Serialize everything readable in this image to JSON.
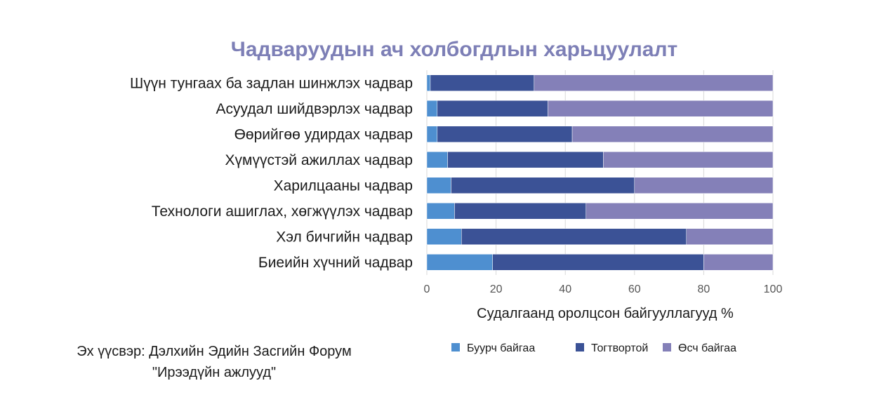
{
  "chart_data": {
    "type": "bar",
    "orientation": "horizontal",
    "stacked": true,
    "title": "Чадваруудын ач холбогдлын харьцуулалт",
    "xlabel": "Судалгаанд оролцсон байгууллагууд %",
    "ylabel": "",
    "xlim": [
      0,
      100
    ],
    "xticks": [
      "0",
      "20",
      "40",
      "60",
      "80",
      "100"
    ],
    "grid": true,
    "legend_position": "bottom",
    "categories": [
      "Шүүн тунгаах ба задлан шинжлэх чадвар",
      "Асуудал шийдвэрлэх чадвар",
      "Өөрийгөө удирдах чадвар",
      "Хүмүүстэй ажиллах чадвар",
      "Харилцааны чадвар",
      "Технологи ашиглах, хөгжүүлэх чадвар",
      "Хэл бичгийн чадвар",
      "Биеийн хүчний чадвар"
    ],
    "series": [
      {
        "name": "Буурч байгаа",
        "color": "#4e8fd0",
        "values": [
          1,
          3,
          3,
          6,
          7,
          8,
          10,
          19
        ]
      },
      {
        "name": "Тогтвортой",
        "color": "#3b5296",
        "values": [
          30,
          32,
          39,
          45,
          53,
          38,
          65,
          61
        ]
      },
      {
        "name": "Өсч байгаа",
        "color": "#8480b8",
        "values": [
          69,
          65,
          58,
          49,
          40,
          54,
          25,
          20
        ]
      }
    ]
  },
  "source": {
    "line1": "Эх үүсвэр: Дэлхийн Эдийн Засгийн Форум",
    "line2": "\"Ирээдүйн ажлууд\""
  },
  "colors": {
    "title": "#7d7fb6",
    "grid": "#d9d9d9"
  }
}
